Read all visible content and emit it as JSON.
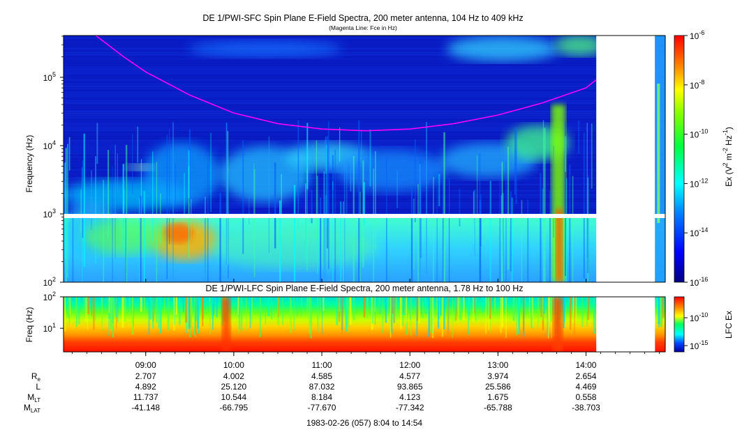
{
  "chart_data": [
    {
      "type": "heatmap",
      "title": "DE 1/PWI-SFC  Spin Plane E-Field Spectra, 200 meter antenna, 104 Hz to 409 kHz",
      "subtitle": "(Magenta Line: Fce in Hz)",
      "ylabel": "Frequency (Hz)",
      "yscale": "log",
      "ylim": [
        100,
        409000
      ],
      "yticks": [
        {
          "base": "10",
          "exp": "2",
          "value": 100
        },
        {
          "base": "10",
          "exp": "3",
          "value": 1000
        },
        {
          "base": "10",
          "exp": "4",
          "value": 10000
        },
        {
          "base": "10",
          "exp": "5",
          "value": 100000
        }
      ],
      "x_time_range": [
        "08:04",
        "14:54"
      ],
      "data_gaps": [
        [
          "14:07",
          "14:47"
        ]
      ],
      "band_gap_hz": [
        870,
        1000
      ],
      "colorbar": {
        "label_parts": [
          "Ex (V",
          "2",
          " m",
          "-2",
          " Hz",
          "-1",
          ")"
        ],
        "scale": "log",
        "range": [
          1e-16,
          1e-06
        ],
        "ticks": [
          {
            "base": "10",
            "exp": "-6",
            "value": 1e-06
          },
          {
            "base": "10",
            "exp": "-8",
            "value": 1e-08
          },
          {
            "base": "10",
            "exp": "-10",
            "value": 1e-10
          },
          {
            "base": "10",
            "exp": "-12",
            "value": 1e-12
          },
          {
            "base": "10",
            "exp": "-14",
            "value": 1e-14
          },
          {
            "base": "10",
            "exp": "-16",
            "value": 1e-16
          }
        ]
      },
      "fce_line": {
        "color": "#ff00ff",
        "points": [
          {
            "t": "08:26",
            "f": 409000
          },
          {
            "t": "08:45",
            "f": 200000
          },
          {
            "t": "09:00",
            "f": 120000
          },
          {
            "t": "09:30",
            "f": 55000
          },
          {
            "t": "10:00",
            "f": 30000
          },
          {
            "t": "10:30",
            "f": 21000
          },
          {
            "t": "11:00",
            "f": 17500
          },
          {
            "t": "11:30",
            "f": 16500
          },
          {
            "t": "12:00",
            "f": 17500
          },
          {
            "t": "12:30",
            "f": 21000
          },
          {
            "t": "13:00",
            "f": 28000
          },
          {
            "t": "13:30",
            "f": 42000
          },
          {
            "t": "14:00",
            "f": 70000
          },
          {
            "t": "14:07",
            "f": 92000
          }
        ]
      }
    },
    {
      "type": "heatmap",
      "title": "DE 1/PWI-LFC  Spin Plane E-Field Spectra, 200 meter antenna, 1.78 Hz to 100 Hz",
      "ylabel": "Freq (Hz)",
      "yscale": "log",
      "ylim": [
        1.78,
        100
      ],
      "yticks": [
        {
          "base": "10",
          "exp": "1",
          "value": 10
        },
        {
          "base": "10",
          "exp": "2",
          "value": 100
        }
      ],
      "x_time_range": [
        "08:04",
        "14:54"
      ],
      "data_gaps": [
        [
          "14:07",
          "14:47"
        ]
      ],
      "colorbar": {
        "label": "LFC Ex",
        "scale": "log",
        "ticks": [
          {
            "base": "10",
            "exp": "-10",
            "value": 1e-10
          },
          {
            "base": "10",
            "exp": "-15",
            "value": 1e-15
          }
        ]
      }
    }
  ],
  "x_axis": {
    "tick_labels": [
      "09:00",
      "10:00",
      "11:00",
      "12:00",
      "13:00",
      "14:00"
    ],
    "ephemeris": [
      {
        "label": "R",
        "sub": "e",
        "values": [
          "2.707",
          "4.002",
          "4.585",
          "4.577",
          "3.974",
          "2.654"
        ]
      },
      {
        "label": "L",
        "sub": "",
        "values": [
          "4.892",
          "25.120",
          "87.032",
          "93.865",
          "25.586",
          "4.469"
        ]
      },
      {
        "label": "M",
        "sub": "LT",
        "values": [
          "11.737",
          "10.544",
          "8.184",
          "4.123",
          "1.675",
          "0.558"
        ]
      },
      {
        "label": "M",
        "sub": "LAT",
        "values": [
          "-41.148",
          "-66.795",
          "-77.670",
          "-77.342",
          "-65.788",
          "-38.703"
        ]
      }
    ],
    "footer": "1983-02-26 (057) 8:04 to 14:54"
  }
}
